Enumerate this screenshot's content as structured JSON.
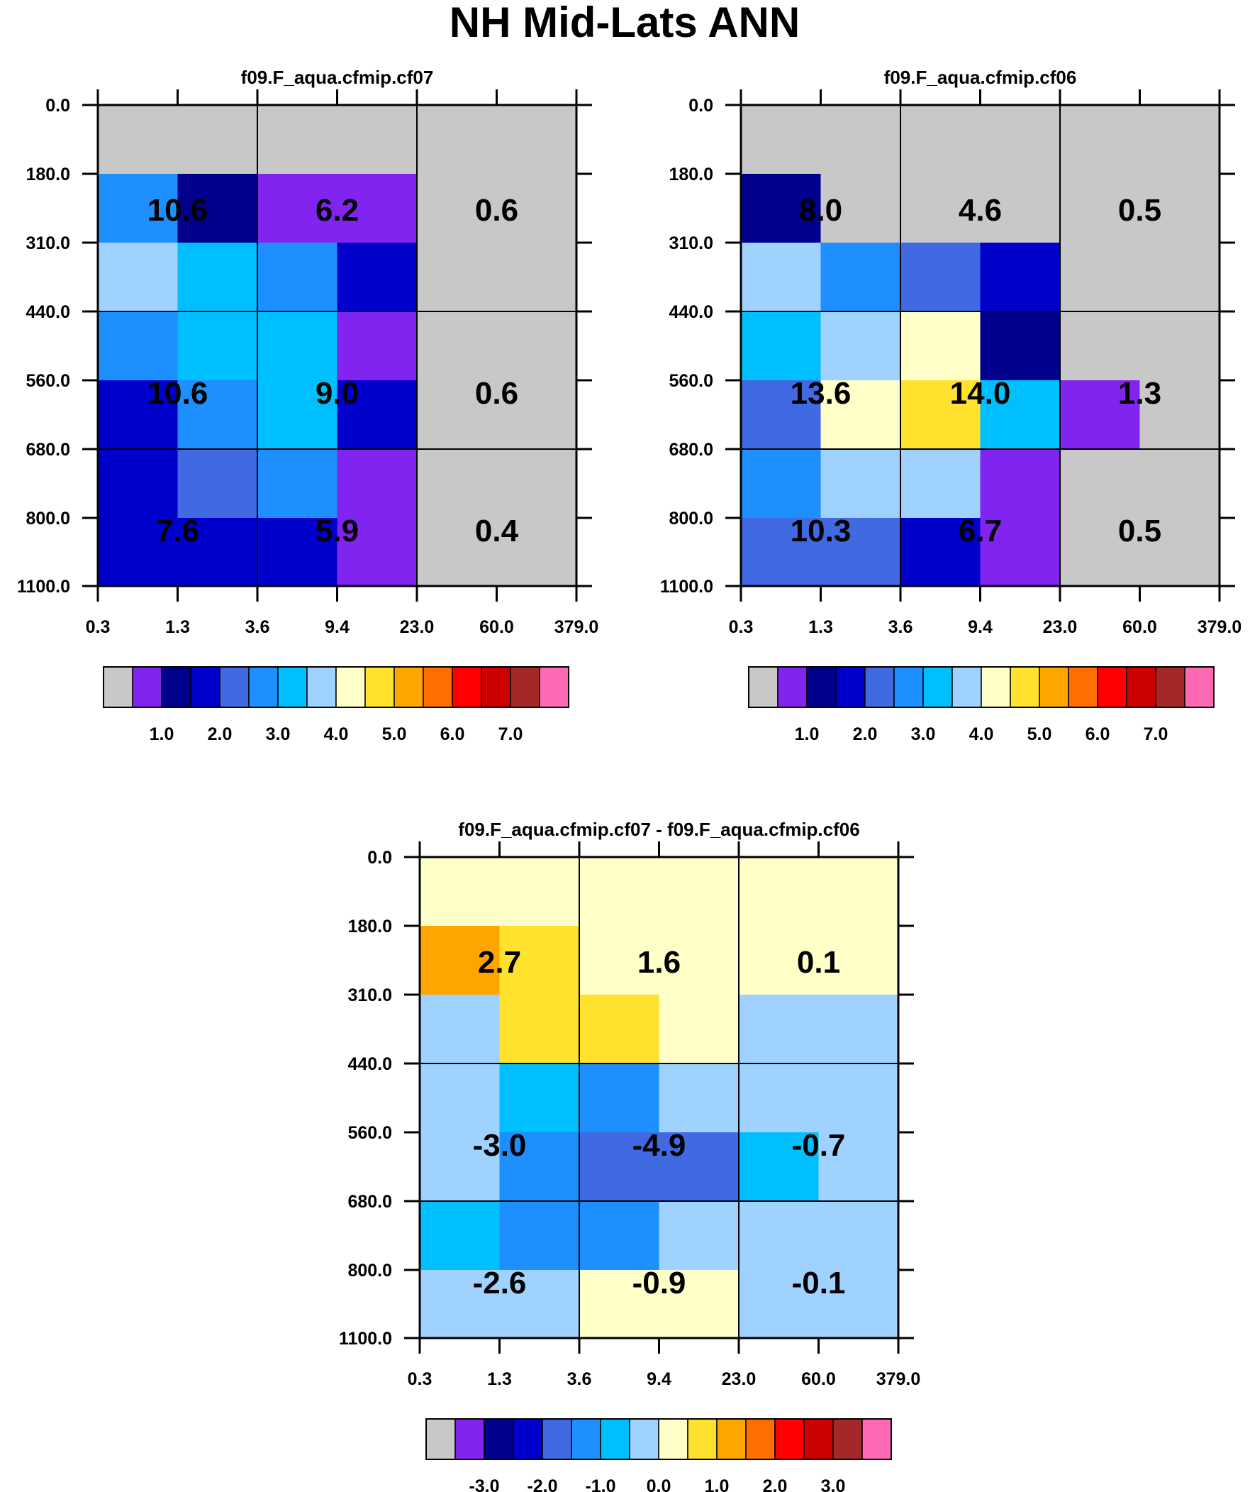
{
  "title": "NH Mid-Lats ANN",
  "colors": {
    "palette": [
      "#c8c8c8",
      "#8224f0",
      "#00008c",
      "#0000cd",
      "#4169e1",
      "#1e8fff",
      "#00bfff",
      "#a0d2ff",
      "#ffffc8",
      "#ffe12e",
      "#ffa500",
      "#ff6e00",
      "#ff0000",
      "#cd0000",
      "#a52828",
      "#ff69b4"
    ],
    "grid": "#000000",
    "text": "#000000"
  },
  "chart_data": [
    {
      "type": "heatmap",
      "name": "panel-cf07",
      "title": "f09.F_aqua.cfmip.cf07",
      "xlabel": "",
      "ylabel": "",
      "x_ticks": [
        "0.3",
        "1.3",
        "3.6",
        "9.4",
        "23.0",
        "60.0",
        "379.0"
      ],
      "y_ticks": [
        "0.0",
        "180.0",
        "310.0",
        "440.0",
        "560.0",
        "680.0",
        "800.0",
        "1100.0"
      ],
      "cell_colors": [
        [
          0,
          0,
          0,
          0,
          0,
          0
        ],
        [
          5,
          2,
          1,
          1,
          0,
          0
        ],
        [
          7,
          6,
          5,
          3,
          0,
          0
        ],
        [
          5,
          6,
          6,
          1,
          0,
          0
        ],
        [
          3,
          5,
          6,
          3,
          0,
          0
        ],
        [
          3,
          4,
          5,
          1,
          0,
          0
        ],
        [
          3,
          3,
          3,
          1,
          0,
          0
        ]
      ],
      "summary_values": [
        [
          "10.6",
          "6.2",
          "0.6"
        ],
        [
          "10.6",
          "9.0",
          "0.6"
        ],
        [
          "7.6",
          "5.9",
          "0.4"
        ]
      ],
      "colorbar_labels": [
        "1.0",
        "2.0",
        "3.0",
        "4.0",
        "5.0",
        "6.0",
        "7.0"
      ],
      "colorbar_colors": [
        0,
        1,
        2,
        3,
        4,
        5,
        6,
        7,
        8,
        9,
        10,
        11,
        12,
        13,
        14,
        15
      ]
    },
    {
      "type": "heatmap",
      "name": "panel-cf06",
      "title": "f09.F_aqua.cfmip.cf06",
      "xlabel": "",
      "ylabel": "",
      "x_ticks": [
        "0.3",
        "1.3",
        "3.6",
        "9.4",
        "23.0",
        "60.0",
        "379.0"
      ],
      "y_ticks": [
        "0.0",
        "180.0",
        "310.0",
        "440.0",
        "560.0",
        "680.0",
        "800.0",
        "1100.0"
      ],
      "cell_colors": [
        [
          0,
          0,
          0,
          0,
          0,
          0
        ],
        [
          2,
          0,
          0,
          0,
          0,
          0
        ],
        [
          7,
          5,
          4,
          3,
          0,
          0
        ],
        [
          6,
          7,
          8,
          2,
          0,
          0
        ],
        [
          4,
          8,
          9,
          6,
          1,
          0
        ],
        [
          5,
          7,
          7,
          1,
          0,
          0
        ],
        [
          4,
          4,
          3,
          1,
          0,
          0
        ]
      ],
      "summary_values": [
        [
          "8.0",
          "4.6",
          "0.5"
        ],
        [
          "13.6",
          "14.0",
          "1.3"
        ],
        [
          "10.3",
          "6.7",
          "0.5"
        ]
      ],
      "colorbar_labels": [
        "1.0",
        "2.0",
        "3.0",
        "4.0",
        "5.0",
        "6.0",
        "7.0"
      ],
      "colorbar_colors": [
        0,
        1,
        2,
        3,
        4,
        5,
        6,
        7,
        8,
        9,
        10,
        11,
        12,
        13,
        14,
        15
      ]
    },
    {
      "type": "heatmap",
      "name": "panel-difference",
      "title": "f09.F_aqua.cfmip.cf07 - f09.F_aqua.cfmip.cf06",
      "xlabel": "",
      "ylabel": "",
      "x_ticks": [
        "0.3",
        "1.3",
        "3.6",
        "9.4",
        "23.0",
        "60.0",
        "379.0"
      ],
      "y_ticks": [
        "0.0",
        "180.0",
        "310.0",
        "440.0",
        "560.0",
        "680.0",
        "800.0",
        "1100.0"
      ],
      "cell_colors": [
        [
          8,
          8,
          8,
          8,
          8,
          8
        ],
        [
          10,
          9,
          8,
          8,
          8,
          8
        ],
        [
          7,
          9,
          9,
          8,
          7,
          7
        ],
        [
          7,
          6,
          5,
          7,
          7,
          7
        ],
        [
          7,
          5,
          4,
          4,
          6,
          7
        ],
        [
          6,
          5,
          5,
          7,
          7,
          7
        ],
        [
          7,
          7,
          8,
          8,
          7,
          7
        ]
      ],
      "summary_values": [
        [
          "2.7",
          "1.6",
          "0.1"
        ],
        [
          "-3.0",
          "-4.9",
          "-0.7"
        ],
        [
          "-2.6",
          "-0.9",
          "-0.1"
        ]
      ],
      "colorbar_labels": [
        "-3.0",
        "-2.0",
        "-1.0",
        "0.0",
        "1.0",
        "2.0",
        "3.0"
      ],
      "colorbar_colors": [
        0,
        1,
        2,
        3,
        4,
        5,
        6,
        7,
        8,
        9,
        10,
        11,
        12,
        13,
        14,
        15
      ]
    }
  ]
}
